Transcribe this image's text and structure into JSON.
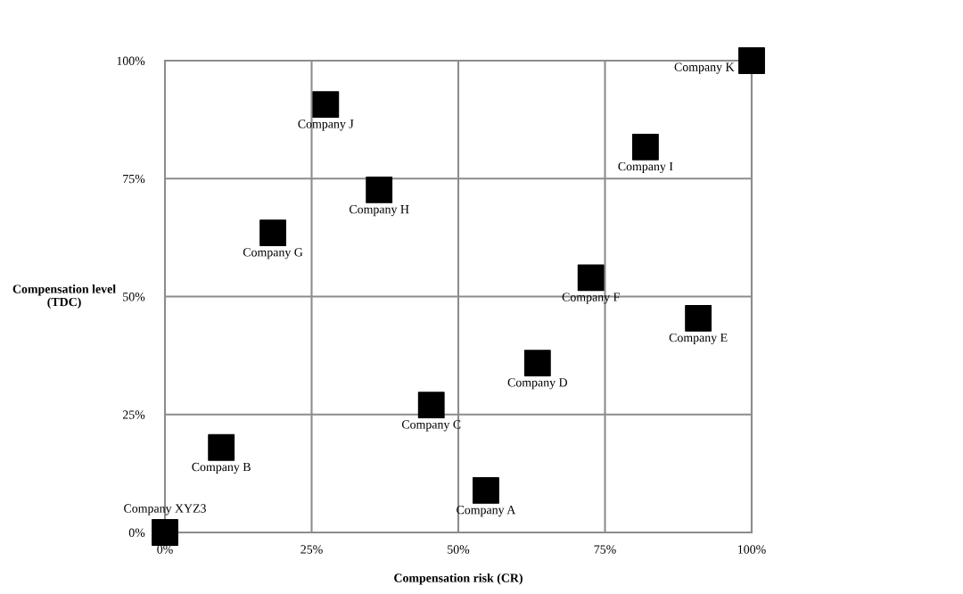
{
  "chart_data": {
    "type": "scatter",
    "xlabel": "Compensation risk (CR)",
    "ylabel": "Compensation level\n(TDC)",
    "x": [
      0,
      9.6,
      45.4,
      54.7,
      63.5,
      90.9,
      72.6,
      18.4,
      36.5,
      27.4,
      81.9,
      100
    ],
    "series": [
      {
        "color": "#000000",
        "values": [
          0,
          18,
          27,
          8.9,
          35.9,
          45.4,
          54,
          63.5,
          72.6,
          90.7,
          81.7,
          100
        ]
      }
    ],
    "marker": "square",
    "annotations": [
      {
        "text": "Company XYZ3",
        "x": 0,
        "y": 0
      },
      {
        "text": "Company B",
        "x": 9.6,
        "y": 18
      },
      {
        "text": "Company C",
        "x": 45.4,
        "y": 27
      },
      {
        "text": "Company A",
        "x": 54.7,
        "y": 8.9
      },
      {
        "text": "Company D",
        "x": 63.5,
        "y": 35.9
      },
      {
        "text": "Company E",
        "x": 90.9,
        "y": 45.4
      },
      {
        "text": "Company F",
        "x": 72.6,
        "y": 54
      },
      {
        "text": "Company G",
        "x": 18.4,
        "y": 63.5
      },
      {
        "text": "Company H",
        "x": 36.5,
        "y": 72.6
      },
      {
        "text": "Company J",
        "x": 27.4,
        "y": 90.7
      },
      {
        "text": "Company I",
        "x": 81.9,
        "y": 81.7
      },
      {
        "text": "Company K",
        "x": 100,
        "y": 100
      }
    ],
    "xlim": [
      0,
      100
    ],
    "ylim": [
      0,
      100
    ],
    "xticks": [
      {
        "value": 0,
        "label": "0%"
      },
      {
        "value": 25,
        "label": "25%"
      },
      {
        "value": 50,
        "label": "50%"
      },
      {
        "value": 75,
        "label": "75%"
      },
      {
        "value": 100,
        "label": "100%"
      }
    ],
    "yticks": [
      {
        "value": 0,
        "label": "0%"
      },
      {
        "value": 25,
        "label": "25%"
      },
      {
        "value": 50,
        "label": "50%"
      },
      {
        "value": 75,
        "label": "75%"
      },
      {
        "value": 100,
        "label": "100%"
      }
    ],
    "grid": true
  }
}
